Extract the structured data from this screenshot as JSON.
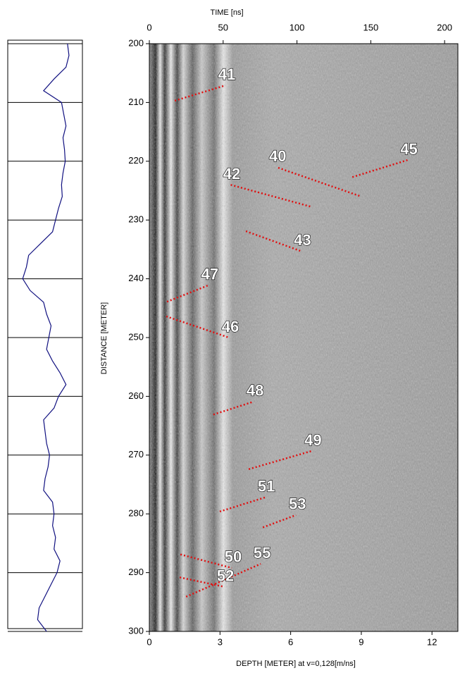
{
  "chart_data": {
    "type": "radargram",
    "top_axis_title": "TIME [ns]",
    "bottom_axis_title": "DEPTH [METER] at v=0,128[m/ns]",
    "y_axis_title": "DISTANCE [METER]",
    "x2lim": [
      0,
      209
    ],
    "x2ticks": [
      0,
      50,
      100,
      150,
      200
    ],
    "xlim": [
      0,
      13.1
    ],
    "xticks": [
      0,
      3,
      6,
      9,
      12
    ],
    "ylim": [
      200,
      300
    ],
    "yticks": [
      200,
      210,
      220,
      230,
      240,
      250,
      260,
      270,
      280,
      290,
      300
    ],
    "annotation_color": "#e01010",
    "annotations": [
      {
        "label": "41",
        "points": [
          [
            1.08,
            209.7
          ],
          [
            3.23,
            207.1
          ]
        ]
      },
      {
        "label": "40",
        "points": [
          [
            8.92,
            225.9
          ],
          [
            5.39,
            221.0
          ]
        ]
      },
      {
        "label": "45",
        "points": [
          [
            8.62,
            222.7
          ],
          [
            10.96,
            219.8
          ]
        ]
      },
      {
        "label": "42",
        "points": [
          [
            6.83,
            227.7
          ],
          [
            3.44,
            224.0
          ]
        ]
      },
      {
        "label": "43",
        "points": [
          [
            4.1,
            231.9
          ],
          [
            6.44,
            235.3
          ]
        ]
      },
      {
        "label": "47",
        "points": [
          [
            0.75,
            243.9
          ],
          [
            2.51,
            241.1
          ]
        ]
      },
      {
        "label": "46",
        "points": [
          [
            0.72,
            246.4
          ],
          [
            3.38,
            250.0
          ]
        ]
      },
      {
        "label": "48",
        "points": [
          [
            2.72,
            263.1
          ],
          [
            4.43,
            260.9
          ]
        ]
      },
      {
        "label": "49",
        "points": [
          [
            4.22,
            272.4
          ],
          [
            6.89,
            269.3
          ]
        ]
      },
      {
        "label": "51",
        "points": [
          [
            2.99,
            279.6
          ],
          [
            4.91,
            277.2
          ]
        ]
      },
      {
        "label": "53",
        "points": [
          [
            4.82,
            282.3
          ],
          [
            6.23,
            280.2
          ]
        ]
      },
      {
        "label": "50",
        "points": [
          [
            1.32,
            286.9
          ],
          [
            3.5,
            289.2
          ]
        ]
      },
      {
        "label": "55",
        "points": [
          [
            1.56,
            294.1
          ],
          [
            4.73,
            288.5
          ]
        ]
      },
      {
        "label": "52",
        "points": [
          [
            1.29,
            290.8
          ],
          [
            3.17,
            292.4
          ]
        ]
      }
    ],
    "log": {
      "color": "#101080",
      "xlim": [
        0,
        100
      ],
      "distance": [
        200,
        202,
        204,
        206,
        208,
        210,
        212,
        214,
        216,
        218,
        220,
        222,
        224,
        226,
        228,
        230,
        232,
        234,
        236,
        238,
        240,
        242,
        244,
        246,
        248,
        250,
        252,
        254,
        256,
        258,
        260,
        262,
        264,
        266,
        268,
        270,
        272,
        274,
        276,
        278,
        280,
        282,
        284,
        286,
        288,
        290,
        292,
        294,
        296,
        298,
        300
      ],
      "values": [
        80,
        82,
        78,
        62,
        48,
        72,
        75,
        78,
        74,
        76,
        77,
        74,
        72,
        73,
        68,
        64,
        60,
        44,
        28,
        25,
        20,
        30,
        48,
        52,
        58,
        55,
        52,
        60,
        70,
        78,
        68,
        62,
        48,
        50,
        52,
        56,
        54,
        50,
        48,
        60,
        62,
        60,
        64,
        62,
        70,
        66,
        58,
        50,
        42,
        40,
        52
      ]
    }
  }
}
